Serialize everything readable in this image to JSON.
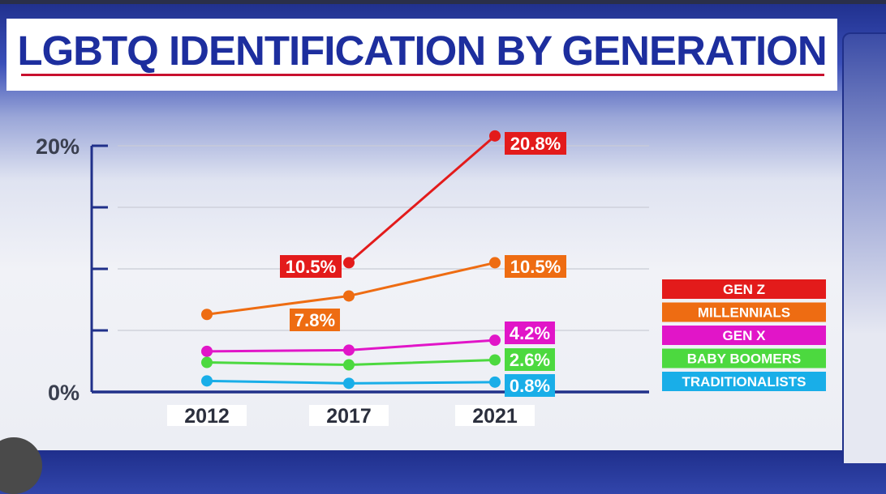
{
  "title": "LGBTQ IDENTIFICATION BY GENERATION",
  "colors": {
    "title_text": "#1d2e9e",
    "title_underline": "#c8102e",
    "axis": "#20308a",
    "gen_z": "#e31b1b",
    "millennials": "#ee6c12",
    "gen_x": "#e115c8",
    "baby_boomers": "#4cd93f",
    "traditionalists": "#19aee8"
  },
  "chart_data": {
    "type": "line",
    "title": "LGBTQ IDENTIFICATION BY GENERATION",
    "categories": [
      "2012",
      "2017",
      "2021"
    ],
    "y_ticks": [
      "20%",
      "0%"
    ],
    "ylim": [
      0,
      20
    ],
    "grid": true,
    "legend_position": "right",
    "series": [
      {
        "name": "GEN Z",
        "key": "gen_z",
        "values": [
          null,
          10.5,
          20.8
        ],
        "labels": [
          "",
          "10.5%",
          "20.8%"
        ]
      },
      {
        "name": "MILLENNIALS",
        "key": "millennials",
        "values": [
          6.3,
          7.8,
          10.5
        ],
        "labels": [
          "",
          "7.8%",
          "10.5%"
        ]
      },
      {
        "name": "GEN X",
        "key": "gen_x",
        "values": [
          3.3,
          3.4,
          4.2
        ],
        "labels": [
          "",
          "",
          "4.2%"
        ]
      },
      {
        "name": "BABY BOOMERS",
        "key": "baby_boomers",
        "values": [
          2.4,
          2.2,
          2.6
        ],
        "labels": [
          "",
          "",
          "2.6%"
        ]
      },
      {
        "name": "TRADITIONALISTS",
        "key": "traditionalists",
        "values": [
          0.9,
          0.7,
          0.8
        ],
        "labels": [
          "",
          "",
          "0.8%"
        ]
      }
    ]
  }
}
